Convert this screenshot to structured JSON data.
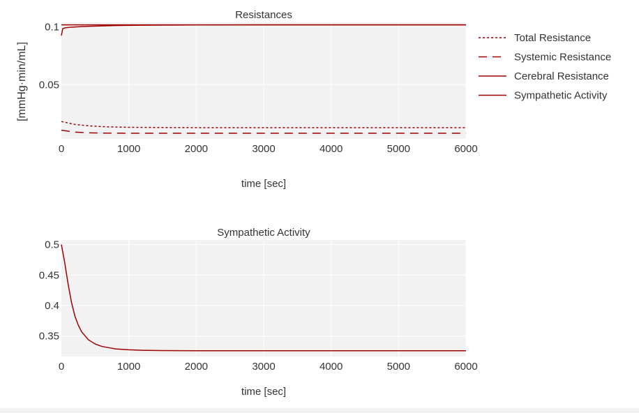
{
  "chart_data": [
    {
      "type": "line",
      "title": "Resistances",
      "xlabel": "time [sec]",
      "ylabel": "[mmHg·min/mL]",
      "xlim": [
        0,
        6000
      ],
      "ylim": [
        0.003,
        0.104
      ],
      "xticks": [
        0,
        1000,
        2000,
        3000,
        4000,
        5000,
        6000
      ],
      "yticks": [
        0.05,
        0.1
      ],
      "ytick_labels": [
        "0.05",
        "0.1"
      ],
      "grid": true,
      "legend": "right",
      "series": [
        {
          "name": "Total Resistance",
          "style": "dotted",
          "color": "#a00000",
          "x": [
            0,
            200,
            400,
            600,
            800,
            1000,
            1500,
            2000,
            3000,
            4000,
            5000,
            6000
          ],
          "y": [
            0.018,
            0.0155,
            0.0143,
            0.0136,
            0.0132,
            0.013,
            0.0128,
            0.0127,
            0.0127,
            0.0127,
            0.0127,
            0.0127
          ]
        },
        {
          "name": "Systemic Resistance",
          "style": "dashed",
          "color": "#a00000",
          "x": [
            0,
            200,
            400,
            600,
            800,
            1000,
            1500,
            2000,
            3000,
            4000,
            5000,
            6000
          ],
          "y": [
            0.0105,
            0.0088,
            0.0082,
            0.008,
            0.0079,
            0.0078,
            0.0078,
            0.0078,
            0.0078,
            0.0078,
            0.0078,
            0.0078
          ]
        },
        {
          "name": "Cerebral Resistance",
          "style": "solid",
          "color": "#a00000",
          "x": [
            0,
            20,
            60,
            150,
            300,
            500,
            800,
            1200,
            2000,
            3000,
            4000,
            5000,
            6000
          ],
          "y": [
            0.0925,
            0.0985,
            0.0993,
            0.0998,
            0.1003,
            0.1007,
            0.1012,
            0.1015,
            0.1017,
            0.1018,
            0.1018,
            0.1018,
            0.1018
          ]
        },
        {
          "name": "Sympathetic Activity",
          "style": "solid",
          "color": "#a00000",
          "x": [
            0,
            6000
          ],
          "y": [
            0.1018,
            0.1018
          ]
        }
      ]
    },
    {
      "type": "line",
      "title": "Sympathetic Activity",
      "xlabel": "time [sec]",
      "ylabel": "",
      "xlim": [
        0,
        6000
      ],
      "ylim": [
        0.3165,
        0.5075
      ],
      "xticks": [
        0,
        1000,
        2000,
        3000,
        4000,
        5000,
        6000
      ],
      "yticks": [
        0.35,
        0.4,
        0.45,
        0.5
      ],
      "ytick_labels": [
        "0.35",
        "0.4",
        "0.45",
        "0.5"
      ],
      "grid": true,
      "series": [
        {
          "name": "Sympathetic Activity",
          "style": "solid",
          "color": "#a00000",
          "x": [
            0,
            50,
            100,
            150,
            200,
            250,
            300,
            400,
            500,
            600,
            700,
            800,
            1000,
            1200,
            1500,
            2000,
            3000,
            4000,
            5000,
            6000
          ],
          "y": [
            0.5,
            0.47,
            0.435,
            0.405,
            0.383,
            0.368,
            0.357,
            0.344,
            0.337,
            0.333,
            0.331,
            0.329,
            0.3275,
            0.3267,
            0.3262,
            0.326,
            0.326,
            0.326,
            0.326,
            0.326
          ]
        }
      ]
    }
  ]
}
